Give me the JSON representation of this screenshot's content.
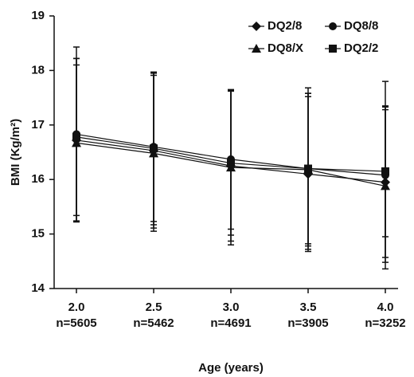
{
  "chart_data": {
    "type": "line",
    "y_label": "BMI (Kg/m²)",
    "x_label": "Age (years)",
    "categories": [
      "2.0",
      "2.5",
      "3.0",
      "3.5",
      "4.0"
    ],
    "sample_sizes": [
      "n=5605",
      "n=5462",
      "n=4691",
      "n=3905",
      "n=3252"
    ],
    "ylim": [
      14,
      19
    ],
    "yticks": [
      14,
      15,
      16,
      17,
      18,
      19
    ],
    "grid": false,
    "legend": "upper right",
    "series": [
      {
        "name": "DQ2/8",
        "color": "#111111",
        "marker": "diamond",
        "values": [
          16.72,
          16.53,
          16.25,
          16.1,
          15.95
        ],
        "errors": [
          1.5,
          1.42,
          1.38,
          1.42,
          1.38
        ]
      },
      {
        "name": "DQ8/8",
        "color": "#111111",
        "marker": "circle",
        "values": [
          16.83,
          16.6,
          16.37,
          16.2,
          16.08
        ],
        "errors": [
          1.6,
          1.37,
          1.28,
          1.38,
          1.72
        ]
      },
      {
        "name": "DQ8/X",
        "color": "#111111",
        "marker": "triangle",
        "values": [
          16.67,
          16.48,
          16.22,
          16.18,
          15.88
        ],
        "errors": [
          1.43,
          1.43,
          1.42,
          1.4,
          1.4
        ]
      },
      {
        "name": "DQ2/2",
        "color": "#111111",
        "marker": "square",
        "values": [
          16.78,
          16.57,
          16.3,
          16.2,
          16.15
        ],
        "errors": [
          1.44,
          1.4,
          1.32,
          1.48,
          1.2
        ]
      }
    ]
  }
}
